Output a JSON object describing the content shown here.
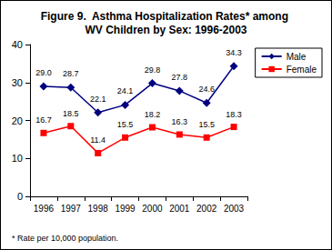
{
  "chart_data": {
    "type": "line",
    "title": "Figure 9.  Asthma Hospitalization Rates* among WV Children by Sex: 1996-2003",
    "annotations": [
      "* Rate per 10,000 population."
    ],
    "categories": [
      "1996",
      "1997",
      "1998",
      "1999",
      "2000",
      "2001",
      "2002",
      "2003"
    ],
    "series": [
      {
        "name": "Male",
        "color": "#000080",
        "marker": "diamond",
        "line_style": "solid",
        "values": [
          29.0,
          28.7,
          22.1,
          24.1,
          29.8,
          27.8,
          24.6,
          34.3
        ],
        "value_labels": [
          "29.0",
          "28.7",
          "22.1",
          "24.1",
          "29.8",
          "27.8",
          "24.6",
          "34.3"
        ]
      },
      {
        "name": "Female",
        "color": "#ff0000",
        "marker": "square",
        "line_style": "solid",
        "values": [
          16.7,
          18.5,
          11.4,
          15.5,
          18.2,
          16.3,
          15.5,
          18.3
        ],
        "value_labels": [
          "16.7",
          "18.5",
          "11.4",
          "15.5",
          "18.2",
          "16.3",
          "15.5",
          "18.3"
        ]
      }
    ],
    "ylim": [
      0,
      40
    ],
    "yticks": [
      0,
      10,
      20,
      30,
      40
    ],
    "grid": false,
    "legend": "right",
    "data_labels": true
  }
}
